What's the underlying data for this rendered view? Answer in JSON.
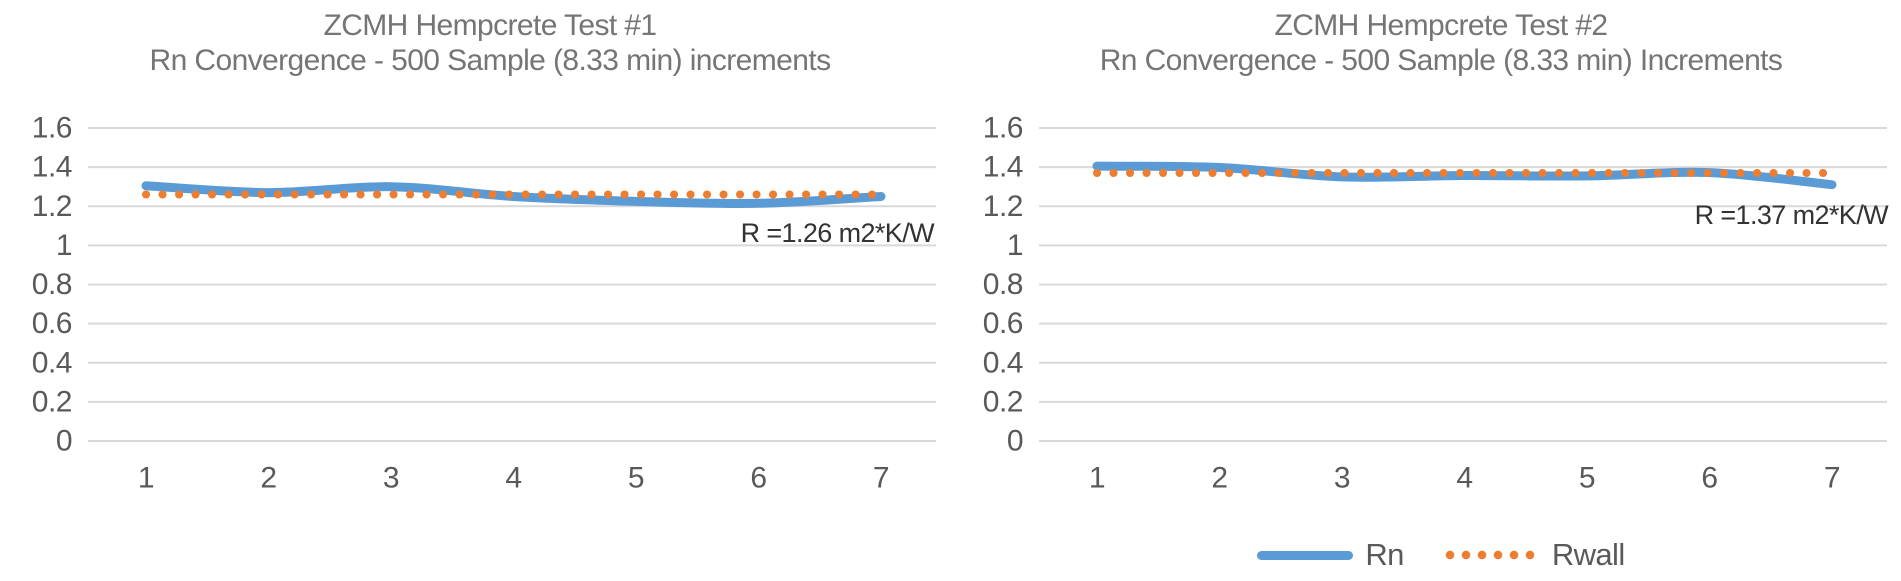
{
  "colors": {
    "rn_blue": "#5B9BD5",
    "rwall_orange": "#ED7D31",
    "gridline": "#D9D9D9",
    "axis_text": "#595959",
    "title_text": "#757575",
    "annotation_text": "#333333",
    "background": "#FFFFFF"
  },
  "legend": {
    "position": "bottom-of-right-chart",
    "items": [
      {
        "label": "Rn",
        "color": "#5B9BD5",
        "style": "solid"
      },
      {
        "label": "Rwall",
        "color": "#ED7D31",
        "style": "dotted"
      }
    ]
  },
  "chart_data": [
    {
      "type": "line",
      "title": "ZCMH Hempcrete Test #1",
      "subtitle": "Rn Convergence - 500 Sample (8.33 min) increments",
      "annotation": "R =1.26 m2*K/W",
      "x": [
        1,
        2,
        3,
        4,
        5,
        6,
        7
      ],
      "xticks": [
        "1",
        "2",
        "3",
        "4",
        "5",
        "6",
        "7"
      ],
      "yticks": [
        "1.6",
        "1.4",
        "1.2",
        "1",
        "0.8",
        "0.6",
        "0.4",
        "0.2",
        "0"
      ],
      "ylim": [
        0,
        1.6
      ],
      "grid": true,
      "legend_shown": false,
      "series": [
        {
          "name": "Rn",
          "style": "solid",
          "color": "#5B9BD5",
          "values": [
            1.305,
            1.27,
            1.3,
            1.25,
            1.225,
            1.215,
            1.25
          ]
        },
        {
          "name": "Rwall",
          "style": "dotted",
          "color": "#ED7D31",
          "values": [
            1.26,
            1.26,
            1.26,
            1.26,
            1.26,
            1.26,
            1.26
          ]
        }
      ]
    },
    {
      "type": "line",
      "title": "ZCMH Hempcrete Test #2",
      "subtitle": "Rn Convergence - 500 Sample (8.33 min) Increments",
      "annotation": "R =1.37 m2*K/W",
      "x": [
        1,
        2,
        3,
        4,
        5,
        6,
        7
      ],
      "xticks": [
        "1",
        "2",
        "3",
        "4",
        "5",
        "6",
        "7"
      ],
      "yticks": [
        "1.6",
        "1.4",
        "1.2",
        "1",
        "0.8",
        "0.6",
        "0.4",
        "0.2",
        "0"
      ],
      "ylim": [
        0,
        1.6
      ],
      "grid": true,
      "legend_shown": true,
      "series": [
        {
          "name": "Rn",
          "style": "solid",
          "color": "#5B9BD5",
          "values": [
            1.405,
            1.398,
            1.35,
            1.357,
            1.355,
            1.372,
            1.31
          ]
        },
        {
          "name": "Rwall",
          "style": "dotted",
          "color": "#ED7D31",
          "values": [
            1.37,
            1.37,
            1.37,
            1.37,
            1.37,
            1.37,
            1.37
          ]
        }
      ]
    }
  ]
}
